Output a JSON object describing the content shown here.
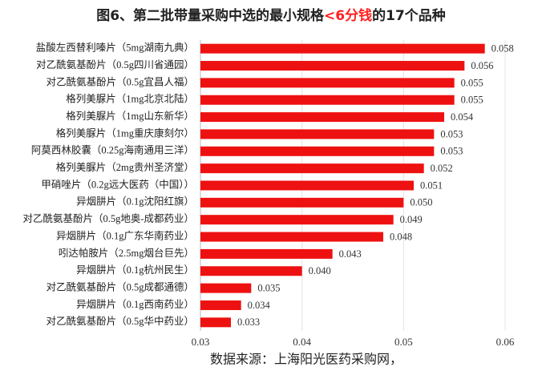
{
  "chart_data": {
    "type": "hbar",
    "title": "图6、第二批带量采购中选的最小规格",
    "title_highlight": "<6分钱",
    "title_suffix": "的17个品种",
    "source": "数据来源：上海阳光医药采购网，",
    "categories": [
      "盐酸左西替利嗪片（5mg湖南九典）",
      "对乙酰氨基酚片（0.5g四川省通园）",
      "对乙酰氨基酚片（0.5g宜昌人福）",
      "格列美脲片（1mg北京北陆）",
      "格列美脲片（1mg山东新华）",
      "格列美脲片（1mg重庆康刻尔）",
      "阿莫西林胶囊（0.25g海南通用三洋）",
      "格列美脲片（2mg贵州圣济堂）",
      "甲硝唑片（0.2g远大医药（中国））",
      "异烟肼片（0.1g沈阳红旗）",
      "对乙酰氨基酚片（0.5g地奥-成都药业）",
      "异烟肼片（0.1g广东华南药业）",
      "吲达帕胺片（2.5mg烟台巨先）",
      "异烟肼片（0.1g杭州民生）",
      "对乙酰氨基酚片（0.5g成都通德）",
      "异烟肼片（0.1g西南药业）",
      "对乙酰氨基酚片（0.5g华中药业）"
    ],
    "values": [
      0.058,
      0.056,
      0.055,
      0.055,
      0.054,
      0.053,
      0.053,
      0.052,
      0.051,
      0.05,
      0.049,
      0.048,
      0.043,
      0.04,
      0.035,
      0.034,
      0.033
    ],
    "value_labels": [
      "0.058",
      "0.056",
      "0.055",
      "0.055",
      "0.054",
      "0.053",
      "0.053",
      "0.052",
      "0.051",
      "0.050",
      "0.049",
      "0.048",
      "0.043",
      "0.040",
      "0.035",
      "0.034",
      "0.033"
    ],
    "color": "#ee1111",
    "highlight_color": "#ff2020",
    "xlim": [
      0.03,
      0.06
    ],
    "xticks": [
      0.03,
      0.04,
      0.05,
      0.06
    ],
    "grid": true
  }
}
